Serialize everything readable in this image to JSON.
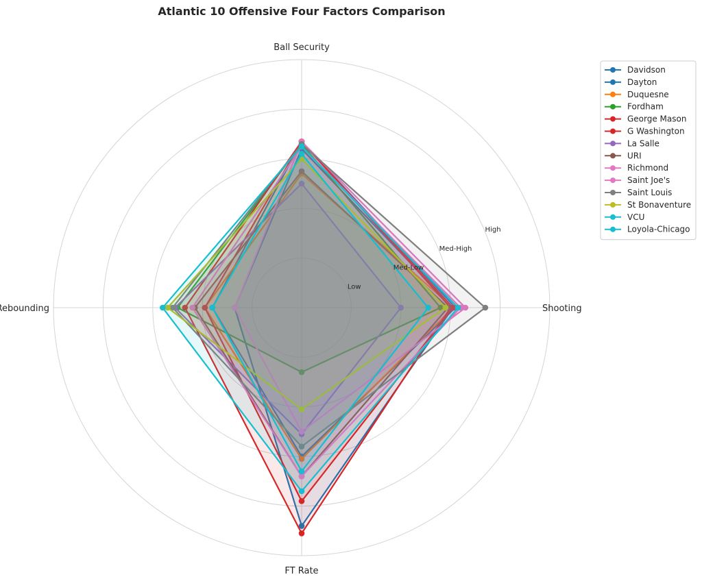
{
  "chart_data": {
    "type": "radar",
    "title": "Atlantic 10 Offensive Four Factors Comparison",
    "axes": [
      "Ball Security",
      "Shooting",
      "FT Rate",
      "Off Rebounding"
    ],
    "ring_labels": [
      "Low",
      "Med-Low",
      "Med-High",
      "High"
    ],
    "ring_values": [
      1,
      2,
      3,
      4
    ],
    "rlim": [
      0,
      5
    ],
    "legend_placement": "upper-right-outside",
    "grid": true,
    "series": [
      {
        "name": "Davidson",
        "color": "#1f77b4",
        "values": [
          3.2,
          3.05,
          4.4,
          1.35
        ]
      },
      {
        "name": "Dayton",
        "color": "#1f77b4",
        "values": [
          3.35,
          3.1,
          3.0,
          1.8
        ]
      },
      {
        "name": "Duquesne",
        "color": "#ff7f0e",
        "values": [
          2.7,
          3.05,
          3.05,
          1.95
        ]
      },
      {
        "name": "Fordham",
        "color": "#2ca02c",
        "values": [
          3.3,
          2.8,
          1.3,
          2.5
        ]
      },
      {
        "name": "George Mason",
        "color": "#d62728",
        "values": [
          3.35,
          3.0,
          4.55,
          2.35
        ]
      },
      {
        "name": "G Washington",
        "color": "#d62728",
        "values": [
          3.35,
          3.05,
          3.9,
          1.95
        ]
      },
      {
        "name": "La Salle",
        "color": "#9467bd",
        "values": [
          2.5,
          2.0,
          2.55,
          2.55
        ]
      },
      {
        "name": "URI",
        "color": "#8c564b",
        "values": [
          2.75,
          2.95,
          3.4,
          2.15
        ]
      },
      {
        "name": "Richmond",
        "color": "#e377c2",
        "values": [
          3.35,
          3.3,
          2.5,
          1.35
        ]
      },
      {
        "name": "Saint Joe's",
        "color": "#e377c2",
        "values": [
          3.25,
          3.2,
          3.4,
          2.2
        ]
      },
      {
        "name": "Saint Louis",
        "color": "#7f7f7f",
        "values": [
          3.3,
          3.7,
          2.8,
          2.6
        ]
      },
      {
        "name": "St Bonaventure",
        "color": "#bcbd22",
        "values": [
          3.0,
          2.9,
          2.05,
          2.7
        ]
      },
      {
        "name": "VCU",
        "color": "#17becf",
        "values": [
          3.1,
          2.55,
          3.3,
          1.8
        ]
      },
      {
        "name": "Loyola-Chicago",
        "color": "#17becf",
        "values": [
          3.25,
          3.15,
          3.7,
          2.8
        ]
      }
    ]
  }
}
